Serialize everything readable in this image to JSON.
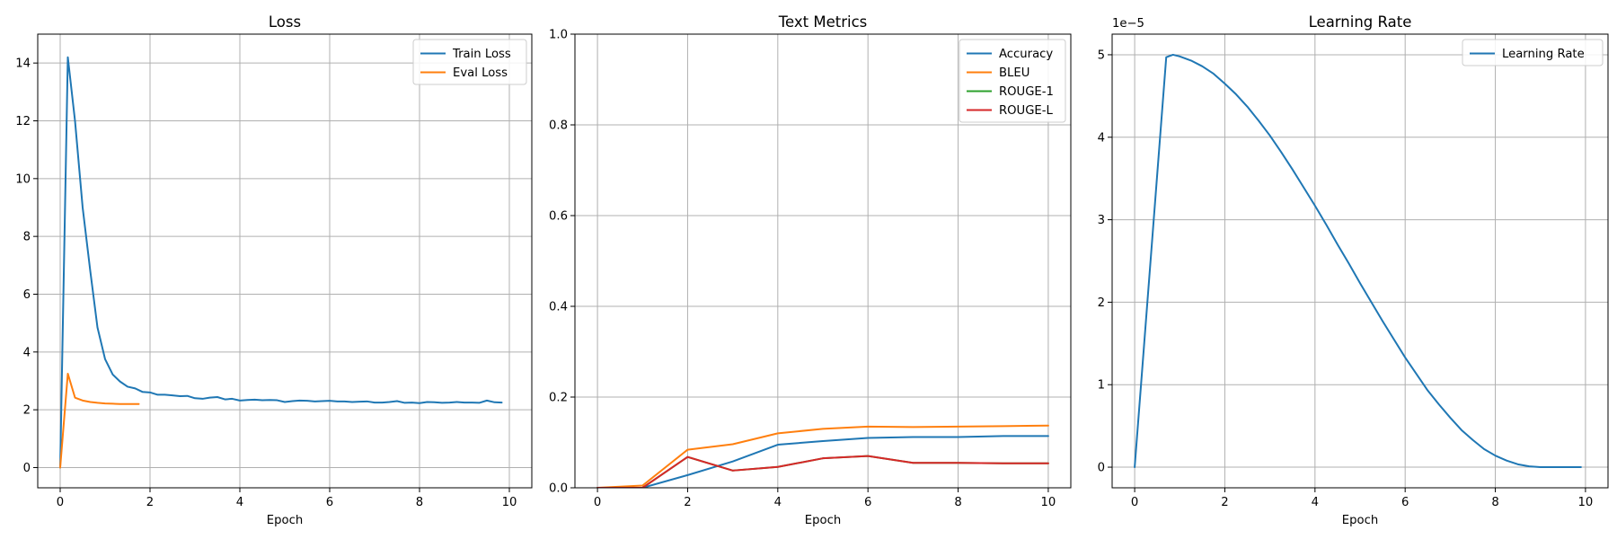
{
  "chart_data": [
    {
      "type": "line",
      "title": "Loss",
      "xlabel": "Epoch",
      "ylabel": "",
      "xlim": [
        -0.5,
        10.5
      ],
      "ylim": [
        -0.7,
        15.0
      ],
      "xticks": [
        0,
        2,
        4,
        6,
        8,
        10
      ],
      "yticks": [
        0,
        2,
        4,
        6,
        8,
        10,
        12,
        14
      ],
      "grid": true,
      "legend_position": "top-right",
      "series": [
        {
          "name": "Train Loss",
          "color": "#1f77b4",
          "x": [
            0.0,
            0.17,
            0.33,
            0.5,
            0.67,
            0.83,
            1.0,
            1.17,
            1.33,
            1.5,
            1.67,
            1.83,
            2.0,
            2.17,
            2.33,
            2.5,
            2.67,
            2.83,
            3.0,
            3.17,
            3.33,
            3.5,
            3.67,
            3.83,
            4.0,
            4.17,
            4.33,
            4.5,
            4.67,
            4.83,
            5.0,
            5.17,
            5.33,
            5.5,
            5.67,
            5.83,
            6.0,
            6.17,
            6.33,
            6.5,
            6.67,
            6.83,
            7.0,
            7.17,
            7.33,
            7.5,
            7.67,
            7.83,
            8.0,
            8.17,
            8.33,
            8.5,
            8.67,
            8.83,
            9.0,
            9.17,
            9.33,
            9.5,
            9.67,
            9.83
          ],
          "values": [
            0.0,
            14.2,
            12.0,
            9.0,
            6.8,
            4.85,
            3.75,
            3.22,
            2.98,
            2.8,
            2.74,
            2.62,
            2.6,
            2.52,
            2.52,
            2.5,
            2.47,
            2.48,
            2.4,
            2.38,
            2.42,
            2.44,
            2.36,
            2.38,
            2.32,
            2.34,
            2.35,
            2.33,
            2.34,
            2.33,
            2.27,
            2.3,
            2.32,
            2.31,
            2.29,
            2.3,
            2.31,
            2.29,
            2.29,
            2.27,
            2.28,
            2.29,
            2.25,
            2.25,
            2.27,
            2.3,
            2.24,
            2.25,
            2.23,
            2.27,
            2.26,
            2.24,
            2.25,
            2.27,
            2.25,
            2.25,
            2.24,
            2.32,
            2.26,
            2.25
          ]
        },
        {
          "name": "Eval Loss",
          "color": "#ff7f0e",
          "x": [
            0.0,
            0.17,
            0.33,
            0.5,
            0.67,
            0.83,
            1.0,
            1.17,
            1.33,
            1.5,
            1.67,
            1.75
          ],
          "values": [
            0.0,
            3.25,
            2.42,
            2.32,
            2.27,
            2.24,
            2.22,
            2.21,
            2.2,
            2.2,
            2.2,
            2.2
          ]
        }
      ]
    },
    {
      "type": "line",
      "title": "Text Metrics",
      "xlabel": "Epoch",
      "ylabel": "",
      "xlim": [
        -0.5,
        10.5
      ],
      "ylim": [
        0.0,
        1.0
      ],
      "xticks": [
        0,
        2,
        4,
        6,
        8,
        10
      ],
      "yticks": [
        0.0,
        0.2,
        0.4,
        0.6,
        0.8,
        1.0
      ],
      "grid": true,
      "legend_position": "top-right",
      "series": [
        {
          "name": "Accuracy",
          "color": "#1f77b4",
          "x": [
            0,
            1,
            2,
            3,
            4,
            5,
            6,
            7,
            8,
            9,
            10
          ],
          "values": [
            0.0,
            0.0,
            0.028,
            0.058,
            0.095,
            0.103,
            0.11,
            0.112,
            0.112,
            0.114,
            0.114
          ]
        },
        {
          "name": "BLEU",
          "color": "#ff7f0e",
          "x": [
            0,
            1,
            2,
            3,
            4,
            5,
            6,
            7,
            8,
            9,
            10
          ],
          "values": [
            0.0,
            0.005,
            0.084,
            0.096,
            0.12,
            0.13,
            0.135,
            0.134,
            0.135,
            0.136,
            0.137
          ]
        },
        {
          "name": "ROUGE-1",
          "color": "#2ca02c",
          "x": [
            0,
            1,
            2,
            3,
            4,
            5,
            6,
            7,
            8,
            9,
            10
          ],
          "values": [
            0.0,
            0.0,
            0.068,
            0.038,
            0.046,
            0.065,
            0.07,
            0.055,
            0.055,
            0.054,
            0.054
          ]
        },
        {
          "name": "ROUGE-L",
          "color": "#d62728",
          "x": [
            0,
            1,
            2,
            3,
            4,
            5,
            6,
            7,
            8,
            9,
            10
          ],
          "values": [
            0.0,
            0.0,
            0.068,
            0.038,
            0.046,
            0.065,
            0.07,
            0.055,
            0.055,
            0.054,
            0.054
          ]
        }
      ]
    },
    {
      "type": "line",
      "title": "Learning Rate",
      "xlabel": "Epoch",
      "ylabel": "",
      "offset_text": "1e−5",
      "xlim": [
        -0.5,
        10.5
      ],
      "ylim": [
        -0.25,
        5.25
      ],
      "xticks": [
        0,
        2,
        4,
        6,
        8,
        10
      ],
      "yticks": [
        0,
        1,
        2,
        3,
        4,
        5
      ],
      "grid": true,
      "legend_position": "top-right",
      "series": [
        {
          "name": "Learning Rate",
          "color": "#1f77b4",
          "x": [
            0.0,
            0.7,
            0.85,
            1.0,
            1.25,
            1.5,
            1.75,
            2.0,
            2.25,
            2.5,
            2.75,
            3.0,
            3.25,
            3.5,
            3.75,
            4.0,
            4.25,
            4.5,
            4.75,
            5.0,
            5.25,
            5.5,
            5.75,
            6.0,
            6.25,
            6.5,
            6.75,
            7.0,
            7.25,
            7.5,
            7.75,
            8.0,
            8.25,
            8.5,
            8.75,
            9.0,
            9.25,
            9.5,
            9.75,
            9.9
          ],
          "values": [
            0.0,
            4.97,
            5.0,
            4.98,
            4.93,
            4.86,
            4.77,
            4.65,
            4.52,
            4.37,
            4.2,
            4.02,
            3.82,
            3.61,
            3.39,
            3.17,
            2.94,
            2.7,
            2.47,
            2.23,
            2.0,
            1.77,
            1.55,
            1.33,
            1.13,
            0.93,
            0.76,
            0.6,
            0.45,
            0.33,
            0.22,
            0.14,
            0.08,
            0.035,
            0.01,
            0.0,
            0.0,
            0.0,
            0.0,
            0.0
          ]
        }
      ]
    }
  ]
}
